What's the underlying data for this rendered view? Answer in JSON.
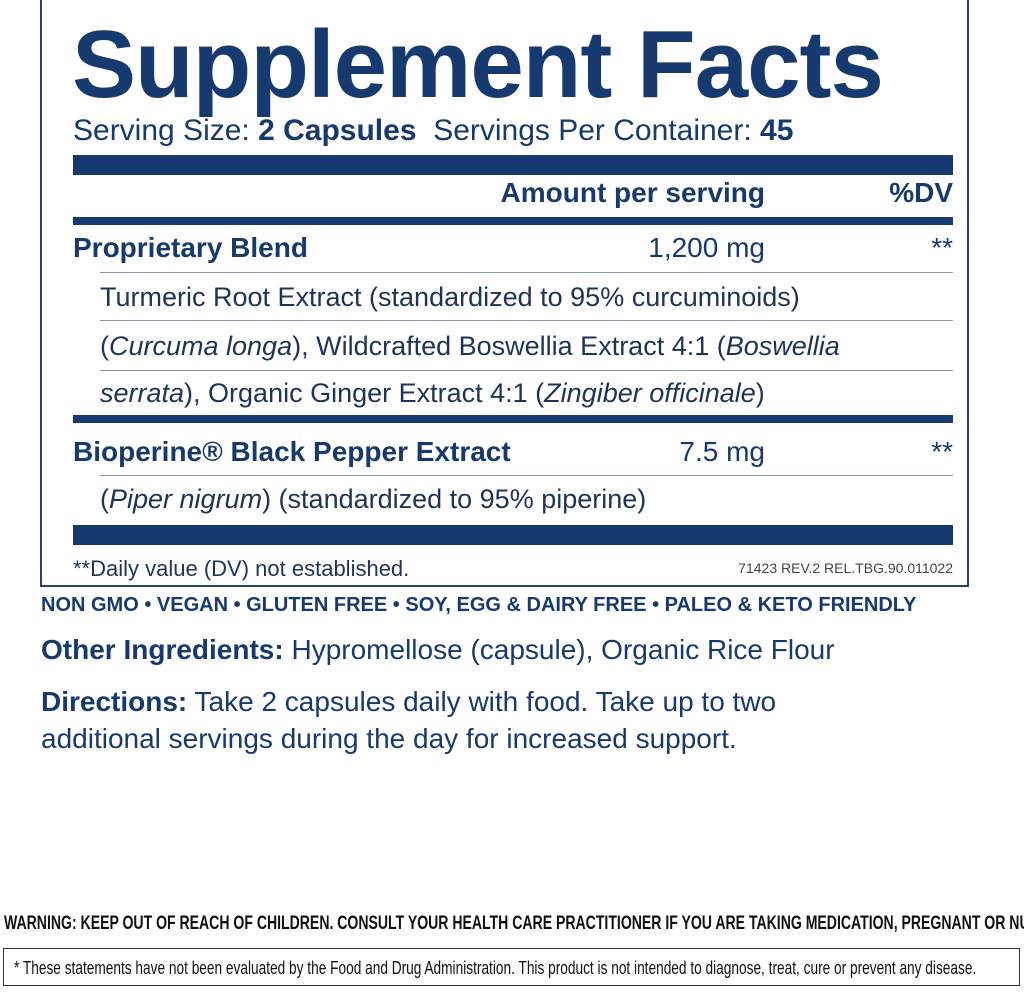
{
  "title": "Supplement Facts",
  "serving": {
    "size_label": "Serving Size:",
    "size_value": "2 Capsules",
    "per_container_label": "Servings Per Container:",
    "per_container_value": "45"
  },
  "header": {
    "amount": "Amount per serving",
    "dv": "%DV"
  },
  "rows": [
    {
      "name": "Proprietary Blend",
      "amount": "1,200 mg",
      "dv": "**"
    },
    {
      "name": "Bioperine® Black Pepper Extract",
      "amount": "7.5 mg",
      "dv": "**"
    }
  ],
  "blend_lines": {
    "l1": "Turmeric Root Extract (standardized to 95% curcuminoids)",
    "l2a": "(",
    "l2b": "Curcuma longa",
    "l2c": "), Wildcrafted Boswellia Extract 4:1 (",
    "l2d": "Boswellia",
    "l3a": "serrata",
    "l3b": "), Organic Ginger Extract 4:1 (",
    "l3c": "Zingiber officinale",
    "l3d": ")"
  },
  "bioperine_line": {
    "a": "(",
    "b": "Piper nigrum",
    "c": ") (standardized to 95% piperine)"
  },
  "footnote": "**Daily value (DV) not established.",
  "code": "71423 REV.2 REL.TBG.90.011022",
  "claims": "NON GMO • VEGAN • GLUTEN FREE • SOY, EGG & DAIRY FREE • PALEO & KETO FRIENDLY",
  "other_ingredients": {
    "label": "Other Ingredients:",
    "text": "Hypromellose (capsule), Organic Rice Flour"
  },
  "directions": {
    "label": "Directions:",
    "line1": "Take 2 capsules daily with food. Take up to two",
    "line2": "additional servings during the day for increased support."
  },
  "warning": "WARNING: KEEP OUT OF REACH OF CHILDREN. CONSULT YOUR HEALTH CARE PRACTITIONER IF YOU ARE TAKING MEDICATION, PREGNANT OR NURSING.",
  "disclaimer": "* These statements have not been evaluated by the Food and Drug Administration. This product is not intended to diagnose, treat, cure or prevent any disease.",
  "colors": {
    "brand_navy": "#163a70"
  }
}
